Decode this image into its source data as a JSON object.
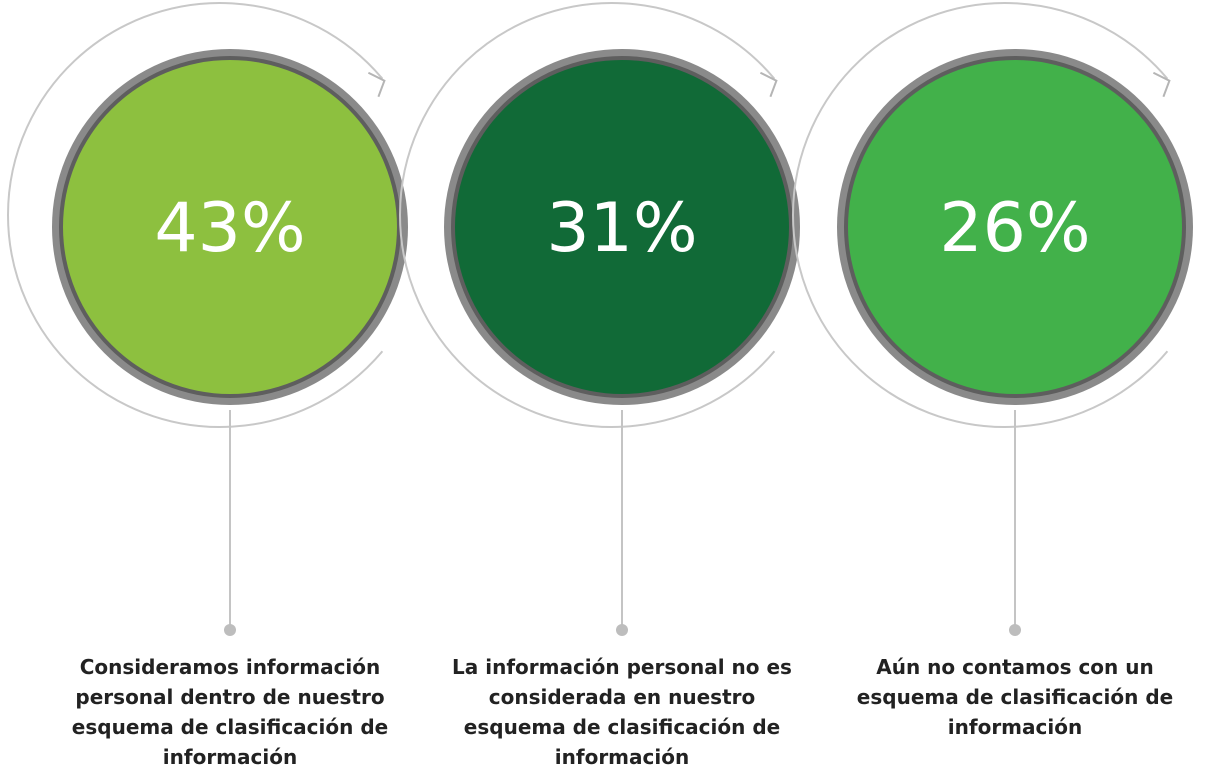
{
  "chart_data": {
    "type": "circles",
    "categories": [
      "Consideramos información personal dentro de nuestro esquema de clasificación de información",
      "La información personal no es considerada en nuestro esquema de clasificación de información",
      "Aún no contamos con un esquema de clasificación de información"
    ],
    "values": [
      43,
      31,
      26
    ],
    "value_labels": [
      "43%",
      "31%",
      "26%"
    ],
    "colors": [
      "#8dc03f",
      "#116a37",
      "#42b14a"
    ]
  }
}
